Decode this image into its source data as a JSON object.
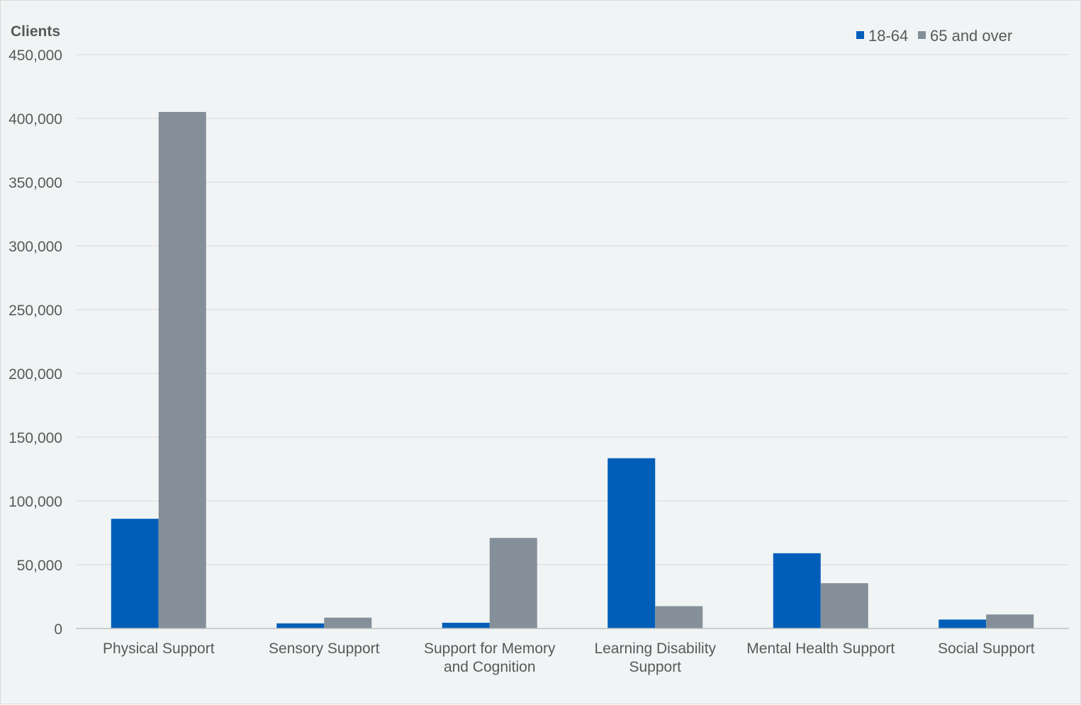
{
  "chart_data": {
    "type": "bar",
    "ylabel": "Clients",
    "xlabel": "",
    "ylim": [
      0,
      450000
    ],
    "yticks": [
      0,
      50000,
      100000,
      150000,
      200000,
      250000,
      300000,
      350000,
      400000,
      450000
    ],
    "ytick_labels": [
      "0",
      "50,000",
      "100,000",
      "150,000",
      "200,000",
      "250,000",
      "300,000",
      "350,000",
      "400,000",
      "450,000"
    ],
    "grid": true,
    "legend_position": "top-right",
    "categories": [
      [
        "Physical Support"
      ],
      [
        "Sensory Support"
      ],
      [
        "Support for Memory",
        "and Cognition"
      ],
      [
        "Learning Disability",
        "Support"
      ],
      [
        "Mental Health Support"
      ],
      [
        "Social Support"
      ]
    ],
    "series": [
      {
        "name": "18-64",
        "color": "#005eb8",
        "values": [
          86000,
          4000,
          4500,
          133500,
          59000,
          7000
        ]
      },
      {
        "name": "65 and over",
        "color": "#858f99",
        "values": [
          405000,
          8500,
          71000,
          17500,
          35500,
          11000
        ]
      }
    ]
  }
}
